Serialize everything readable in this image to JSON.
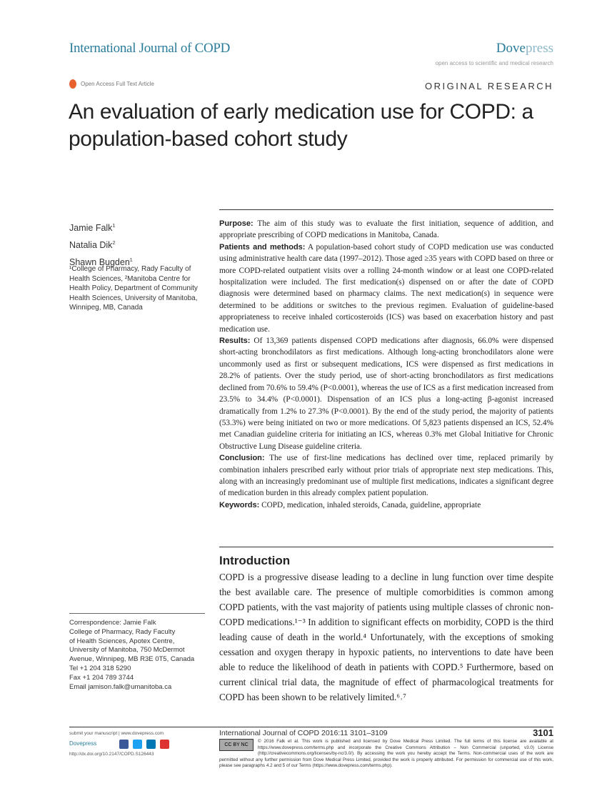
{
  "header": {
    "journal": "International Journal of COPD",
    "publisher_a": "Dove",
    "publisher_b": "press",
    "tagline": "open access to scientific and medical research",
    "open_access": "Open Access Full Text Article",
    "article_type": "ORIGINAL RESEARCH"
  },
  "title": "An evaluation of early medication use for COPD: a population-based cohort study",
  "authors": [
    {
      "name": "Jamie Falk",
      "sup": "1"
    },
    {
      "name": "Natalia Dik",
      "sup": "2"
    },
    {
      "name": "Shawn Bugden",
      "sup": "1"
    }
  ],
  "affiliations": "¹College of Pharmacy, Rady Faculty of Health Sciences, ²Manitoba Centre for Health Policy, Department of Community Health Sciences, University of Manitoba, Winnipeg, MB, Canada",
  "correspondence": [
    "Correspondence: Jamie Falk",
    "College of Pharmacy, Rady Faculty",
    "of Health Sciences, Apotex Centre,",
    "University of Manitoba, 750 McDermot",
    "Avenue, Winnipeg, MB R3E 0T5, Canada",
    "Tel +1 204 318 5290",
    "Fax +1 204 789 3744",
    "Email jamison.falk@umanitoba.ca"
  ],
  "abstract": [
    {
      "label": "Purpose:",
      "text": " The aim of this study was to evaluate the first initiation, sequence of addition, and appropriate prescribing of COPD medications in Manitoba, Canada."
    },
    {
      "label": "Patients and methods:",
      "text": " A population-based cohort study of COPD medication use was conducted using administrative health care data (1997–2012). Those aged ≥35 years with COPD based on three or more COPD-related outpatient visits over a rolling 24-month window or at least one COPD-related hospitalization were included. The first medication(s) dispensed on or after the date of COPD diagnosis were determined based on pharmacy claims. The next medication(s) in sequence were determined to be additions or switches to the previous regimen. Evaluation of guideline-based appropriateness to receive inhaled corticosteroids (ICS) was based on exacerbation history and past medication use."
    },
    {
      "label": "Results:",
      "text": " Of 13,369 patients dispensed COPD medications after diagnosis, 66.0% were dispensed short-acting bronchodilators as first medications. Although long-acting bronchodilators alone were uncommonly used as first or subsequent medications, ICS were dispensed as first medications in 28.2% of patients. Over the study period, use of short-acting bronchodilators as first medications declined from 70.6% to 59.4% (P<0.0001), whereas the use of ICS as a first medication increased from 23.5% to 34.4% (P<0.0001). Dispensation of an ICS plus a long-acting β-agonist increased dramatically from 1.2% to 27.3% (P<0.0001). By the end of the study period, the majority of patients (53.3%) were being initiated on two or more medications. Of 5,823 patients dispensed an ICS, 52.4% met Canadian guideline criteria for initiating an ICS, whereas 0.3% met Global Initiative for Chronic Obstructive Lung Disease guideline criteria."
    },
    {
      "label": "Conclusion:",
      "text": " The use of first-line medications has declined over time, replaced primarily by combination inhalers prescribed early without prior trials of appropriate next step medications. This, along with an increasingly predominant use of multiple first medications, indicates a significant degree of medication burden in this already complex patient population."
    },
    {
      "label": "Keywords:",
      "text": " COPD, medication, inhaled steroids, Canada, guideline, appropriate"
    }
  ],
  "introduction": {
    "heading": "Introduction",
    "text": "COPD is a progressive disease leading to a decline in lung function over time despite the best available care. The presence of multiple comorbidities is common among COPD patients, with the vast majority of patients using multiple classes of chronic non-COPD medications.¹⁻³ In addition to significant effects on morbidity, COPD is the third leading cause of death in the world.⁴ Unfortunately, with the exceptions of smoking cessation and oxygen therapy in hypoxic patients, no interventions to date have been able to reduce the likelihood of death in patients with COPD.⁵ Furthermore, based on current clinical trial data, the magnitude of effect of pharmacological treatments for COPD has been shown to be relatively limited.⁶˒⁷"
  },
  "footer": {
    "submit": "submit your manuscript | www.dovepress.com",
    "dove": "Dovepress",
    "doi": "http://dx.doi.org/10.2147/COPD.S126443",
    "citation": "International Journal of COPD 2016:11 3101–3109",
    "page": "3101",
    "cc": "CC BY NC",
    "license": "© 2016 Falk et al. This work is published and licensed by Dove Medical Press Limited. The full terms of this license are available at https://www.dovepress.com/terms.php and incorporate the Creative Commons Attribution – Non Commercial (unported, v3.0) License (http://creativecommons.org/licenses/by-nc/3.0/). By accessing the work you hereby accept the Terms. Non-commercial uses of the work are permitted without any further permission from Dove Medical Press Limited, provided the work is properly attributed. For permission for commercial use of this work, please see paragraphs 4.2 and 5 of our Terms (https://www.dovepress.com/terms.php).",
    "social": [
      "facebook-icon",
      "twitter-icon",
      "linkedin-icon",
      "youtube-icon"
    ]
  },
  "colors": {
    "brand": "#2a7d9a",
    "oa": "#e8612c"
  }
}
